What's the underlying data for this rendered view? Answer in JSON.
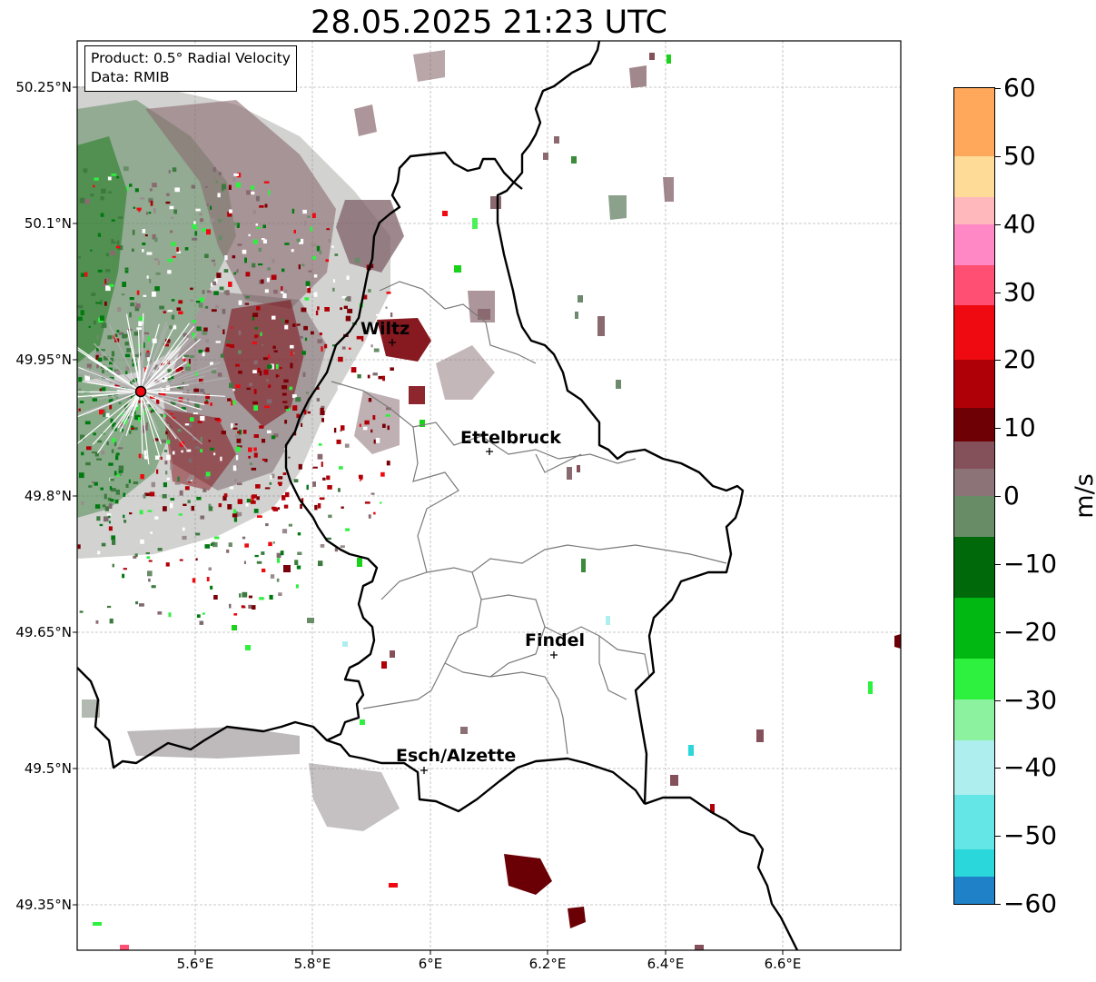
{
  "title": "28.05.2025 21:23 UTC",
  "info": {
    "product": "Product: 0.5° Radial Velocity",
    "source": "Data: RMIB"
  },
  "cities": [
    {
      "name": "Wiltz",
      "lon": 5.93,
      "lat": 49.966
    },
    {
      "name": "Ettelbruck",
      "lon": 6.1,
      "lat": 49.848
    },
    {
      "name": "Findel",
      "lon": 6.21,
      "lat": 49.625
    },
    {
      "name": "Esch/Alzette",
      "lon": 5.99,
      "lat": 49.498
    }
  ],
  "radar_site": {
    "lon": 5.505,
    "lat": 49.914
  },
  "lat_ticks": [
    "50.25°N",
    "50.1°N",
    "49.95°N",
    "49.8°N",
    "49.65°N",
    "49.5°N",
    "49.35°N"
  ],
  "lon_ticks": [
    "5.6°E",
    "5.8°E",
    "6°E",
    "6.2°E",
    "6.4°E",
    "6.6°E"
  ],
  "colorbar": {
    "label": "m/s",
    "ticks": [
      "60",
      "50",
      "40",
      "30",
      "20",
      "10",
      "0",
      "−10",
      "−20",
      "−30",
      "−40",
      "−50",
      "−60"
    ],
    "min": -60,
    "max": 60,
    "stops": [
      {
        "from": 50,
        "to": 60,
        "color": "#ffa75a"
      },
      {
        "from": 44,
        "to": 50,
        "color": "#ffdb98"
      },
      {
        "from": 40,
        "to": 44,
        "color": "#ffb8bc"
      },
      {
        "from": 34,
        "to": 40,
        "color": "#ff88c5"
      },
      {
        "from": 28,
        "to": 34,
        "color": "#ff4f72"
      },
      {
        "from": 20,
        "to": 28,
        "color": "#ee0a10"
      },
      {
        "from": 13,
        "to": 20,
        "color": "#b00007"
      },
      {
        "from": 8,
        "to": 13,
        "color": "#6e0005"
      },
      {
        "from": 4,
        "to": 8,
        "color": "#84505a"
      },
      {
        "from": 0,
        "to": 4,
        "color": "#8c7378"
      },
      {
        "from": -6,
        "to": 0,
        "color": "#688c66"
      },
      {
        "from": -15,
        "to": -6,
        "color": "#006a0b"
      },
      {
        "from": -24,
        "to": -15,
        "color": "#00b811"
      },
      {
        "from": -30,
        "to": -24,
        "color": "#2ef03e"
      },
      {
        "from": -36,
        "to": -30,
        "color": "#8cf29f"
      },
      {
        "from": -44,
        "to": -36,
        "color": "#aeeeee"
      },
      {
        "from": -52,
        "to": -44,
        "color": "#64e6e6"
      },
      {
        "from": -56,
        "to": -52,
        "color": "#2ad8dc"
      },
      {
        "from": -60,
        "to": -56,
        "color": "#1f82c8"
      }
    ]
  },
  "colors": {
    "approach_green": "#3d7a3f",
    "dark_green": "#007a10",
    "recede_mauve": "#8a6a70",
    "dark_red": "#7a0005",
    "border": "#000000",
    "canton": "#808080",
    "grid": "#b4b4b4"
  }
}
